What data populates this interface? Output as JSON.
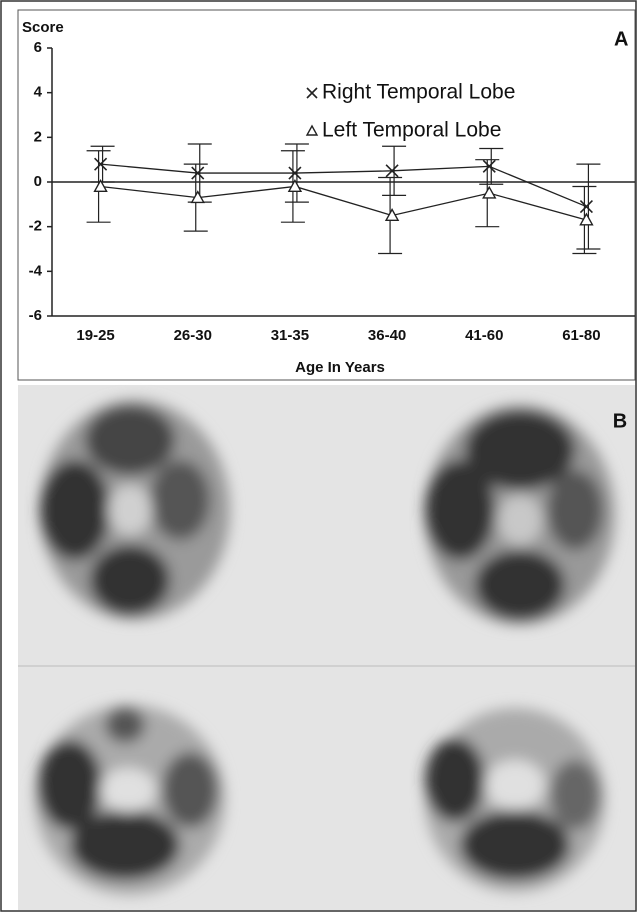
{
  "chart_data": {
    "type": "line",
    "y_label": "Score",
    "x_label": "Age In Years",
    "panel_label": "A",
    "categories": [
      "19-25",
      "26-30",
      "31-35",
      "36-40",
      "41-60",
      "61-80"
    ],
    "series": [
      {
        "name": "Right Temporal Lobe",
        "color": "#222222",
        "marker": "x",
        "values": [
          0.8,
          0.4,
          0.4,
          0.5,
          0.7,
          -1.1
        ],
        "errors": [
          0.8,
          1.3,
          1.3,
          1.1,
          0.8,
          1.9
        ]
      },
      {
        "name": "Left Temporal Lobe",
        "color": "#222222",
        "marker": "triangle",
        "values": [
          -0.2,
          -0.7,
          -0.2,
          -1.5,
          -0.5,
          -1.7
        ],
        "errors": [
          1.6,
          1.5,
          1.6,
          1.7,
          1.5,
          1.5
        ]
      }
    ],
    "ylim": [
      -6,
      6
    ],
    "yticks": [
      -6,
      -4,
      -2,
      0,
      2,
      4,
      6
    ],
    "hline": 0,
    "grid": false
  },
  "image_panel": {
    "label": "B"
  }
}
